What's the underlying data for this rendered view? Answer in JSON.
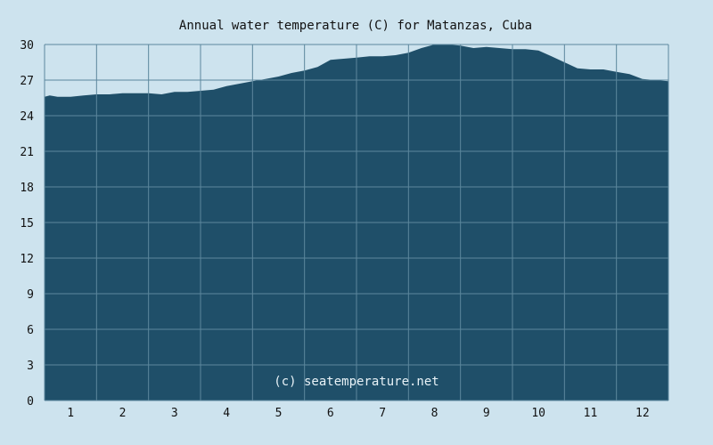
{
  "chart_data": {
    "type": "area",
    "title": "Annual water temperature (C) for Matanzas, Cuba",
    "watermark": "(c) seatemperature.net",
    "xlabel": "",
    "ylabel": "",
    "ylim": [
      0,
      30
    ],
    "xlim": [
      0.5,
      12.5
    ],
    "y_ticks": [
      "0",
      "3",
      "6",
      "9",
      "12",
      "15",
      "18",
      "21",
      "24",
      "27",
      "30"
    ],
    "x_ticks": [
      "1",
      "2",
      "3",
      "4",
      "5",
      "6",
      "7",
      "8",
      "9",
      "10",
      "11",
      "12"
    ],
    "grid": true,
    "colors": {
      "fill": "#1f4f69",
      "grid": "#5c879d",
      "background": "#cde3ee"
    },
    "series": [
      {
        "x": [
          0.5,
          0.6,
          0.75,
          1.0,
          1.25,
          1.5,
          1.75,
          2.0,
          2.25,
          2.5,
          2.75,
          3.0,
          3.25,
          3.5,
          3.75,
          4.0,
          4.25,
          4.5,
          4.75,
          5.0,
          5.25,
          5.5,
          5.75,
          6.0,
          6.25,
          6.5,
          6.75,
          7.0,
          7.25,
          7.5,
          7.75,
          8.0,
          8.25,
          8.5,
          8.75,
          9.0,
          9.25,
          9.5,
          9.75,
          10.0,
          10.25,
          10.5,
          10.75,
          11.0,
          11.25,
          11.5,
          11.75,
          12.0,
          12.25,
          12.5
        ],
        "values": [
          25.6,
          25.7,
          25.6,
          25.6,
          25.7,
          25.8,
          25.8,
          25.9,
          25.9,
          25.9,
          25.8,
          26.0,
          26.0,
          26.1,
          26.2,
          26.5,
          26.7,
          26.9,
          27.1,
          27.3,
          27.6,
          27.8,
          28.1,
          28.7,
          28.8,
          28.9,
          29.0,
          29.0,
          29.1,
          29.3,
          29.7,
          30.0,
          30.0,
          29.9,
          29.7,
          29.8,
          29.7,
          29.6,
          29.6,
          29.5,
          29.0,
          28.5,
          28.0,
          27.9,
          27.9,
          27.7,
          27.5,
          27.1,
          27.0,
          26.9
        ]
      }
    ]
  }
}
